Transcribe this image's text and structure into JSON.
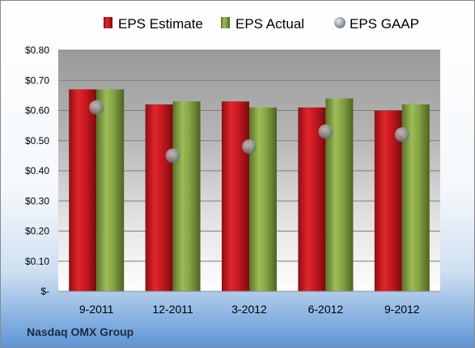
{
  "company_label": "Nasdaq OMX Group",
  "colors": {
    "estimate": "#c0161c",
    "actual": "#7a9a3c",
    "gaap": "#9aa3ad"
  },
  "chart_data": {
    "type": "bar",
    "categories": [
      "9-2011",
      "12-2011",
      "3-2012",
      "6-2012",
      "9-2012"
    ],
    "series": [
      {
        "name": "EPS Estimate",
        "kind": "bar",
        "values": [
          0.67,
          0.62,
          0.63,
          0.61,
          0.6
        ]
      },
      {
        "name": "EPS Actual",
        "kind": "bar",
        "values": [
          0.67,
          0.63,
          0.61,
          0.64,
          0.62
        ]
      },
      {
        "name": "EPS GAAP",
        "kind": "marker",
        "values": [
          0.61,
          0.45,
          0.48,
          0.53,
          0.52
        ]
      }
    ],
    "y_ticks": [
      {
        "value": 0.0,
        "label": "$-"
      },
      {
        "value": 0.1,
        "label": "$0.10"
      },
      {
        "value": 0.2,
        "label": "$0.20"
      },
      {
        "value": 0.3,
        "label": "$0.30"
      },
      {
        "value": 0.4,
        "label": "$0.40"
      },
      {
        "value": 0.5,
        "label": "$0.50"
      },
      {
        "value": 0.6,
        "label": "$0.60"
      },
      {
        "value": 0.7,
        "label": "$0.70"
      },
      {
        "value": 0.8,
        "label": "$0.80"
      }
    ],
    "ylim": [
      0,
      0.8
    ],
    "grid": true,
    "legend_position": "top"
  }
}
